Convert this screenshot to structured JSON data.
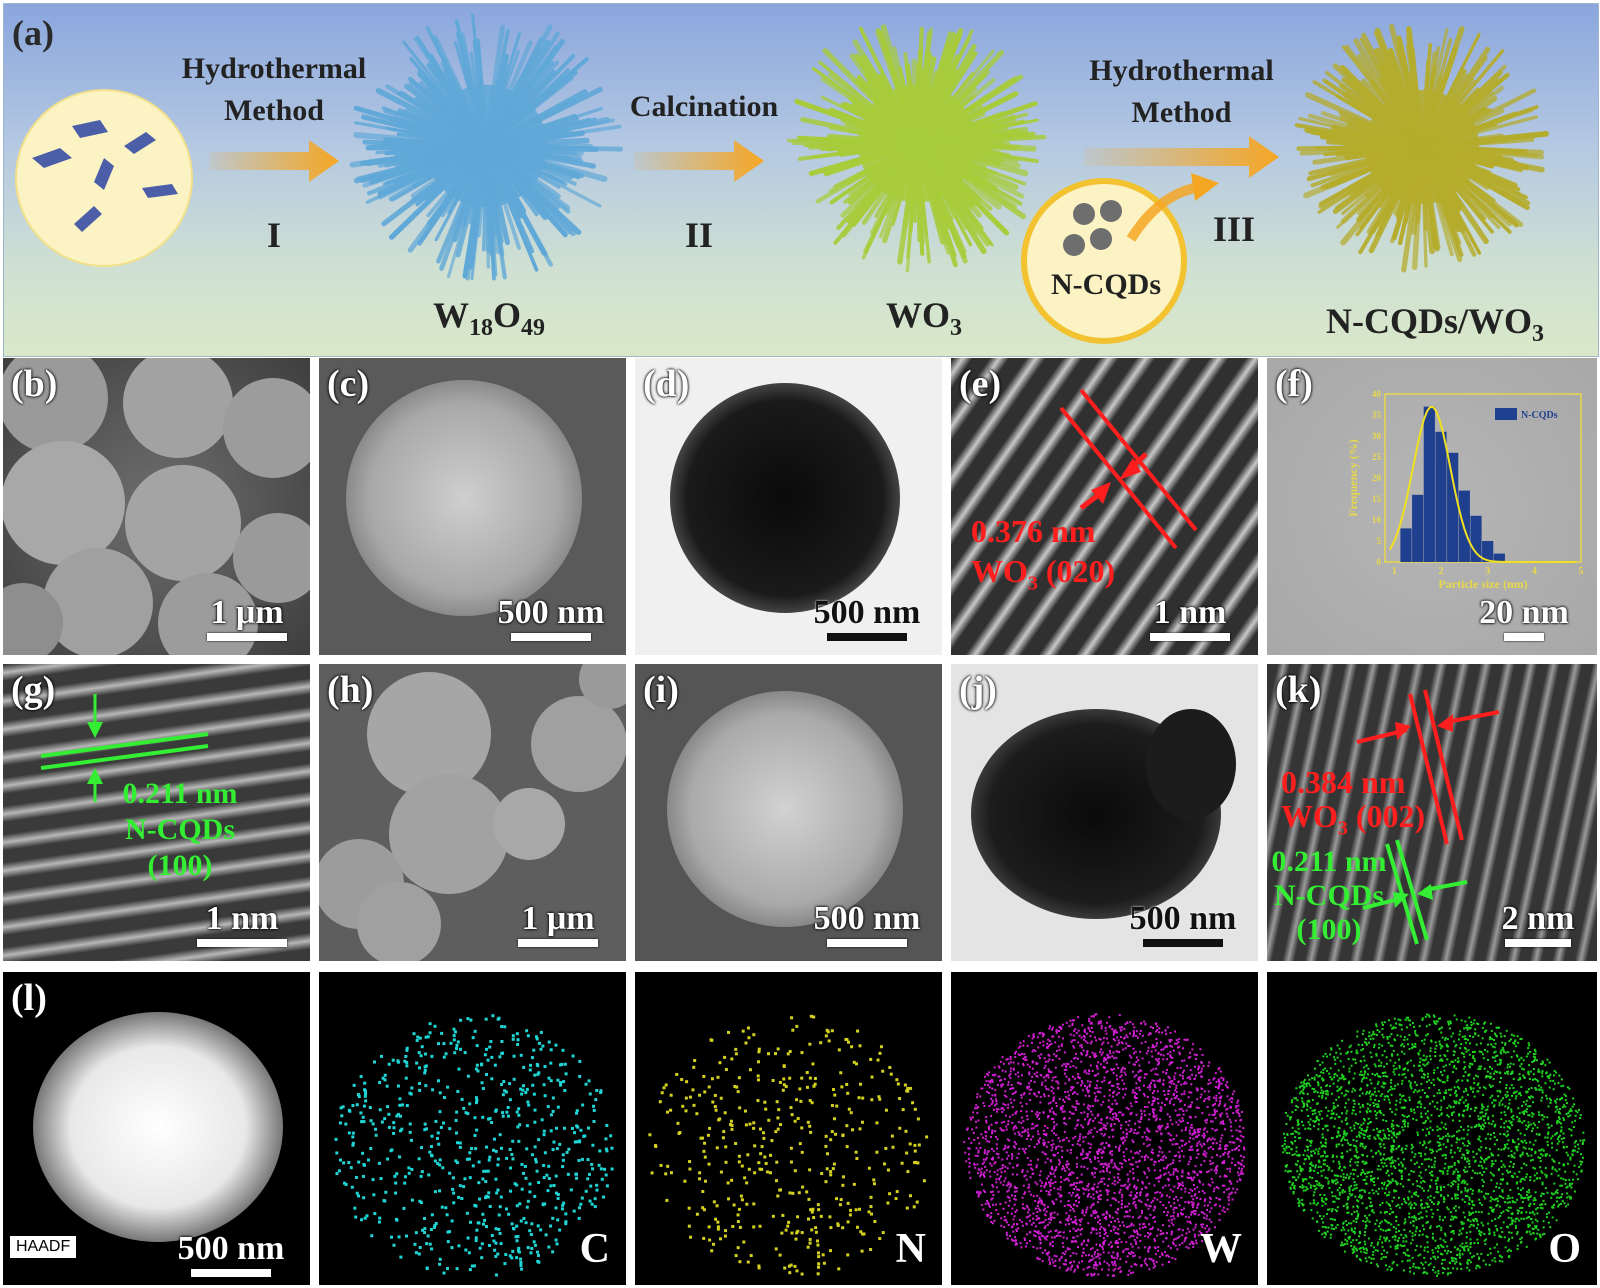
{
  "scheme": {
    "label": "(a)",
    "step1_text": [
      "Hydrothermal",
      "Method"
    ],
    "step1_roman": "I",
    "step2_text": "Calcination",
    "step2_roman": "II",
    "step3_text": [
      "Hydrothermal",
      "Method"
    ],
    "step3_roman": "III",
    "cqd_label": "N-CQDs",
    "product1": {
      "base": "W",
      "sub1": "18",
      "mid": "O",
      "sub2": "49"
    },
    "product2": {
      "base": "WO",
      "sub": "3"
    },
    "product3": {
      "base": "N-CQDs/WO",
      "sub": "3"
    },
    "colors": {
      "w18o49": "#5fa8d8",
      "wo3": "#a8cc3a",
      "ncqd_wo3": "#b5ac2c",
      "arrow": "#f5a623",
      "circle_fill": "#fbf3c4",
      "circle_ring": "#f2c230"
    }
  },
  "panels": {
    "b": {
      "label": "(b)",
      "scale": "1 μm"
    },
    "c": {
      "label": "(c)",
      "scale": "500 nm"
    },
    "d": {
      "label": "(d)",
      "scale": "500 nm"
    },
    "e": {
      "label": "(e)",
      "scale": "1 nm",
      "spacing": "0.376 nm",
      "plane": [
        "WO",
        "3",
        " (020)"
      ]
    },
    "f": {
      "label": "(f)",
      "scale": "20 nm"
    },
    "g": {
      "label": "(g)",
      "scale": "1 nm",
      "spacing": "0.211 nm",
      "material": "N-CQDs",
      "plane": "(100)"
    },
    "h": {
      "label": "(h)",
      "scale": "1 μm"
    },
    "i": {
      "label": "(i)",
      "scale": "500 nm"
    },
    "j": {
      "label": "(j)",
      "scale": "500 nm"
    },
    "k": {
      "label": "(k)",
      "scale": "2 nm",
      "spacing_red": "0.384 nm",
      "plane_red": [
        "WO",
        "3",
        " (002)"
      ],
      "spacing_green": "0.211 nm",
      "material_green": "N-CQDs",
      "plane_green": "(100)"
    },
    "l": {
      "label": "(l)",
      "scale": "500 nm",
      "badge": "HAADF"
    },
    "map_c": {
      "element": "C",
      "color": "#1fd6d6"
    },
    "map_n": {
      "element": "N",
      "color": "#d4d21f"
    },
    "map_w": {
      "element": "W",
      "color": "#d21fd4"
    },
    "map_o": {
      "element": "O",
      "color": "#1fd41f"
    }
  },
  "inset": {
    "legend": "N-CQDs",
    "xlabel": "Particle size (nm)",
    "ylabel": "Frequency (%)",
    "xticks": [
      "1",
      "2",
      "3",
      "4",
      "5"
    ],
    "yticks": [
      "0",
      "5",
      "10",
      "15",
      "20",
      "25",
      "30",
      "35",
      "40"
    ]
  },
  "chart_data": {
    "type": "bar",
    "title": "",
    "xlabel": "Particle size (nm)",
    "ylabel": "Frequency (%)",
    "x": [
      1.25,
      1.5,
      1.75,
      2.0,
      2.25,
      2.5,
      2.75,
      3.0,
      3.25
    ],
    "values": [
      8,
      16,
      37,
      31,
      26,
      17,
      11,
      5,
      2
    ],
    "xlim": [
      0.8,
      5
    ],
    "ylim": [
      0,
      40
    ],
    "series": [
      {
        "name": "N-CQDs",
        "values": [
          8,
          16,
          37,
          31,
          26,
          17,
          11,
          5,
          2
        ]
      }
    ],
    "fit": "gaussian",
    "fit_peak_x": 1.8,
    "fit_peak_y": 37
  }
}
